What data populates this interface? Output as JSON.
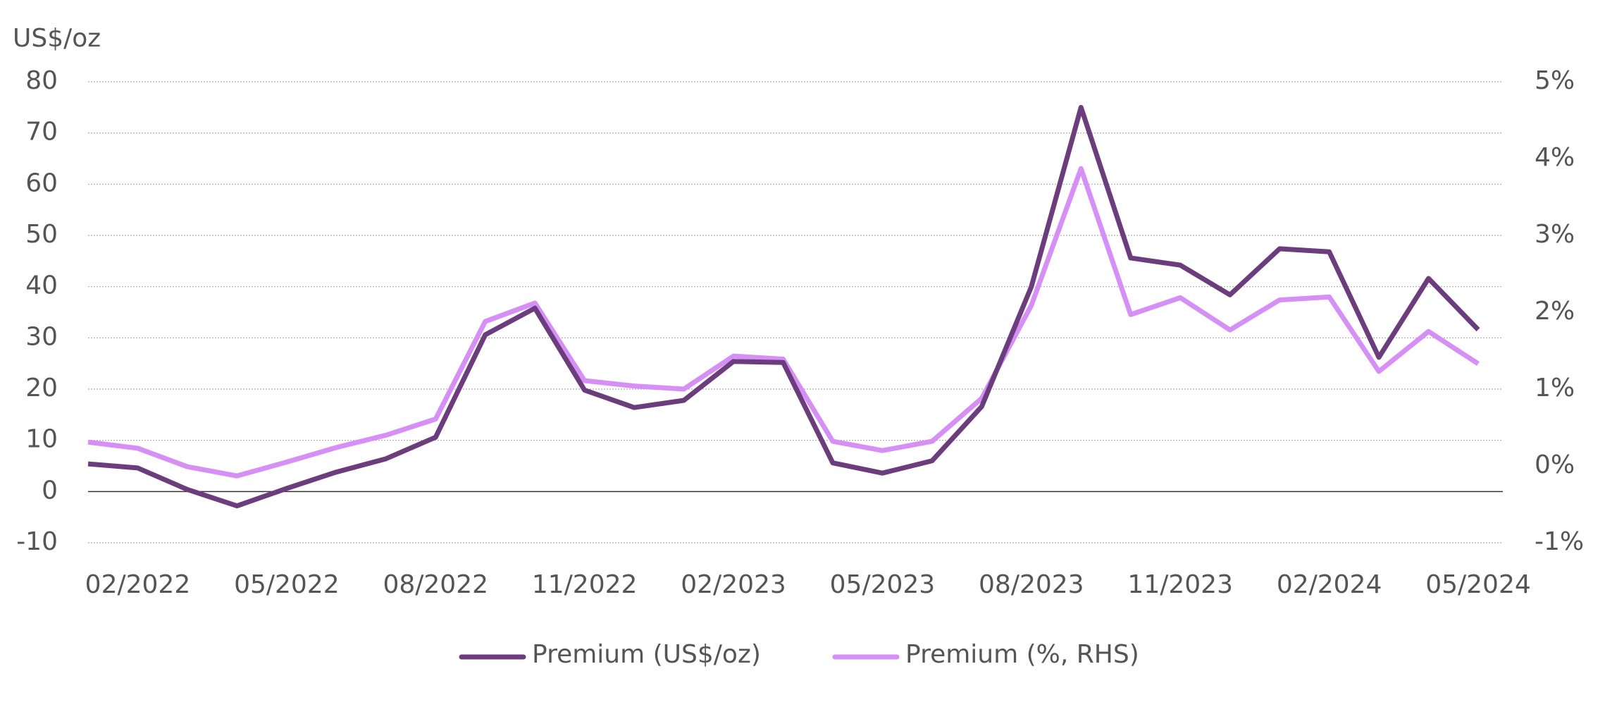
{
  "chart_data": {
    "type": "line",
    "y_axis_label": "US$/oz",
    "categories": [
      null,
      "02/2022",
      null,
      null,
      "05/2022",
      null,
      null,
      "08/2022",
      null,
      null,
      "11/2022",
      null,
      null,
      "02/2023",
      null,
      null,
      "05/2023",
      null,
      null,
      "08/2023",
      null,
      null,
      "11/2023",
      null,
      null,
      "02/2024",
      null,
      null,
      "05/2024"
    ],
    "series": [
      {
        "name": "Premium (US$/oz)",
        "color": "#6b3d7d",
        "values": [
          5.4,
          4.6,
          0.4,
          -2.8,
          0.6,
          3.8,
          6.4,
          10.6,
          30.6,
          35.8,
          19.8,
          16.4,
          17.8,
          25.4,
          25.2,
          5.6,
          3.6,
          6,
          16.6,
          40,
          75,
          45.6,
          44.2,
          38.4,
          47.4,
          46.8,
          26.2,
          41.6,
          31.6
        ]
      },
      {
        "name": "Premium (%, RHS)",
        "color": "#d58ff5",
        "axis": "y2",
        "values": [
          0.31,
          0.23,
          -0.01,
          -0.13,
          0.05,
          0.24,
          0.4,
          0.61,
          1.88,
          2.12,
          1.11,
          1.04,
          1.0,
          1.43,
          1.39,
          0.32,
          0.2,
          0.32,
          0.88,
          2.09,
          3.87,
          1.97,
          2.19,
          1.77,
          2.16,
          2.2,
          1.23,
          1.75,
          1.33
        ]
      }
    ],
    "ylim": [
      -10,
      80
    ],
    "yticks": [
      -10,
      0,
      10,
      20,
      30,
      40,
      50,
      60,
      70,
      80
    ],
    "y2lim": [
      -1,
      5
    ],
    "y2ticks": [
      {
        "value": -1,
        "label": "-1%"
      },
      {
        "value": 0,
        "label": "0%"
      },
      {
        "value": 1,
        "label": "1%"
      },
      {
        "value": 2,
        "label": "2%"
      },
      {
        "value": 3,
        "label": "3%"
      },
      {
        "value": 4,
        "label": "4%"
      },
      {
        "value": 5,
        "label": "5%"
      }
    ],
    "grid": true,
    "legend": "bottom"
  }
}
